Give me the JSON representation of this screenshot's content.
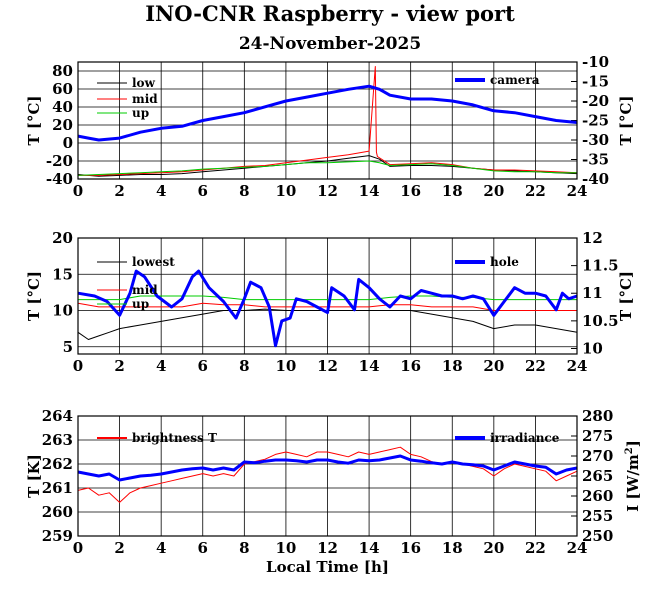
{
  "title": "INO-CNR Raspberry - view port",
  "subtitle": "24-November-2025",
  "chart_data": [
    {
      "type": "line",
      "xlabel": "",
      "ylabel": "T [°C]",
      "ylabel_right": "T [°C]",
      "xlim": [
        0,
        24
      ],
      "ylim": [
        -40,
        90
      ],
      "ylim_right": [
        -40,
        -10
      ],
      "xticks": [
        "0",
        "2",
        "4",
        "6",
        "8",
        "10",
        "12",
        "14",
        "16",
        "18",
        "20",
        "22",
        "24"
      ],
      "yticks": [
        "-40",
        "-20",
        "0",
        "20",
        "40",
        "60",
        "80"
      ],
      "yticks_right": [
        "-40",
        "-35",
        "-30",
        "-25",
        "-20",
        "-15",
        "-10"
      ],
      "grid": true,
      "series": [
        {
          "name": "low",
          "color": "#000000",
          "axis": "left",
          "x": [
            0,
            1,
            2,
            3,
            4,
            5,
            6,
            7,
            8,
            9,
            10,
            11,
            12,
            13,
            14,
            14.5,
            15,
            16,
            17,
            18,
            19,
            20,
            21,
            22,
            23,
            24
          ],
          "y": [
            -35,
            -37,
            -36,
            -35,
            -35,
            -34,
            -32,
            -30,
            -28,
            -26,
            -24,
            -22,
            -20,
            -17,
            -14,
            -18,
            -26,
            -25,
            -25,
            -26,
            -28,
            -30,
            -31,
            -32,
            -33,
            -34
          ]
        },
        {
          "name": "mid",
          "color": "#ff0000",
          "axis": "left",
          "x": [
            0,
            1,
            2,
            3,
            4,
            5,
            6,
            7,
            8,
            9,
            10,
            11,
            12,
            13,
            14,
            14.3,
            14.35,
            14.4,
            15,
            16,
            17,
            18,
            19,
            20,
            21,
            22,
            23,
            24
          ],
          "y": [
            -36,
            -36,
            -35,
            -34,
            -33,
            -32,
            -30,
            -28,
            -26,
            -25,
            -22,
            -19,
            -16,
            -13,
            -9,
            85,
            -10,
            -15,
            -24,
            -23,
            -22,
            -24,
            -28,
            -30,
            -30,
            -31,
            -32,
            -33
          ]
        },
        {
          "name": "up",
          "color": "#00cc00",
          "axis": "left",
          "x": [
            0,
            1,
            2,
            3,
            4,
            5,
            6,
            7,
            8,
            9,
            10,
            11,
            12,
            13,
            14,
            14.5,
            15,
            16,
            17,
            18,
            19,
            20,
            21,
            22,
            23,
            24
          ],
          "y": [
            -36,
            -35,
            -34,
            -33,
            -32,
            -31,
            -29,
            -28,
            -27,
            -26,
            -24,
            -22,
            -22,
            -21,
            -20,
            -22,
            -25,
            -24,
            -23,
            -25,
            -28,
            -31,
            -32,
            -32,
            -33,
            -33
          ]
        },
        {
          "name": "camera",
          "color": "#0000ff",
          "axis": "right",
          "x": [
            0,
            0.5,
            1,
            2,
            3,
            4,
            5,
            6,
            7,
            8,
            9,
            10,
            11,
            12,
            13,
            14,
            14.5,
            15,
            16,
            17,
            18,
            19,
            20,
            21,
            22,
            23,
            24
          ],
          "y": [
            -29,
            -29.5,
            -30,
            -29.5,
            -28,
            -27,
            -26.5,
            -25,
            -24,
            -23,
            -21.5,
            -20,
            -19,
            -18,
            -17,
            -16.2,
            -17,
            -18.5,
            -19.5,
            -19.5,
            -20,
            -21,
            -22.5,
            -23,
            -24,
            -25,
            -25.5
          ]
        }
      ]
    },
    {
      "type": "line",
      "xlabel": "",
      "ylabel": "T [°C]",
      "ylabel_right": "T [°C]",
      "xlim": [
        0,
        24
      ],
      "ylim": [
        4,
        20
      ],
      "ylim_right": [
        9.9,
        12
      ],
      "xticks": [
        "0",
        "2",
        "4",
        "6",
        "8",
        "10",
        "12",
        "14",
        "16",
        "18",
        "20",
        "22",
        "24"
      ],
      "yticks": [
        "5",
        "10",
        "15",
        "20"
      ],
      "yticks_right": [
        "10",
        "10.5",
        "11",
        "11.5",
        "12"
      ],
      "grid": true,
      "series": [
        {
          "name": "lowest",
          "color": "#000000",
          "axis": "left",
          "x": [
            0,
            0.5,
            1,
            1.5,
            2,
            3,
            4,
            5,
            6,
            7,
            8,
            9,
            10,
            11,
            12,
            13,
            14,
            15,
            16,
            17,
            18,
            19,
            20,
            21,
            22,
            23,
            24
          ],
          "y": [
            7,
            6,
            6.5,
            7,
            7.5,
            8,
            8.5,
            9,
            9.5,
            10,
            10,
            10.2,
            10,
            10,
            10,
            10,
            10,
            10,
            10,
            9.5,
            9,
            8.5,
            7.5,
            8,
            8,
            7.5,
            7
          ]
        },
        {
          "name": "mid",
          "color": "#ff0000",
          "axis": "left",
          "x": [
            0,
            1,
            2,
            3,
            4,
            5,
            6,
            7,
            8,
            9,
            10,
            11,
            12,
            13,
            14,
            15,
            16,
            17,
            18,
            19,
            20,
            21,
            22,
            23,
            24
          ],
          "y": [
            11,
            10.5,
            10.5,
            10.5,
            10.5,
            10.5,
            11,
            10.8,
            10.8,
            10.5,
            10.5,
            10.5,
            10.5,
            10.5,
            10.5,
            10.8,
            10.8,
            10.5,
            10.5,
            10.5,
            10,
            10,
            10,
            10,
            10
          ]
        },
        {
          "name": "up",
          "color": "#00cc00",
          "axis": "left",
          "x": [
            0,
            1,
            2,
            3,
            4,
            5,
            6,
            7,
            8,
            9,
            10,
            11,
            12,
            13,
            14,
            15,
            16,
            17,
            18,
            19,
            20,
            21,
            22,
            23,
            24
          ],
          "y": [
            11.5,
            11.5,
            11.5,
            12,
            12,
            12,
            12,
            11.8,
            11.5,
            11.5,
            11.5,
            11.5,
            11.5,
            11.5,
            11.5,
            11.8,
            12,
            12,
            11.8,
            11.8,
            11.5,
            11.5,
            11.5,
            11.5,
            11.5
          ]
        },
        {
          "name": "hole",
          "color": "#0000ff",
          "axis": "right",
          "x": [
            0,
            0.8,
            1.4,
            2,
            2.5,
            2.8,
            3.2,
            3.8,
            4.5,
            5,
            5.5,
            5.8,
            6.3,
            7,
            7.6,
            8,
            8.3,
            8.8,
            9.2,
            9.5,
            9.8,
            10.2,
            10.5,
            11,
            11.5,
            12,
            12.2,
            12.8,
            13.3,
            13.5,
            14,
            14.5,
            15,
            15.5,
            16,
            16.5,
            17,
            17.5,
            18,
            18.5,
            19,
            19.5,
            20,
            20.5,
            21,
            21.5,
            22,
            22.5,
            23,
            23.3,
            23.6,
            24
          ],
          "y": [
            11,
            10.95,
            10.85,
            10.6,
            11,
            11.4,
            11.3,
            10.95,
            10.75,
            10.9,
            11.3,
            11.4,
            11.1,
            10.85,
            10.55,
            10.9,
            11.2,
            11.1,
            10.75,
            10.05,
            10.5,
            10.55,
            10.9,
            10.85,
            10.75,
            10.65,
            11.1,
            10.95,
            10.7,
            11.25,
            11.1,
            10.9,
            10.75,
            10.95,
            10.9,
            11.05,
            11,
            10.95,
            10.95,
            10.9,
            10.95,
            10.9,
            10.6,
            10.85,
            11.1,
            11,
            11,
            10.95,
            10.7,
            11,
            10.9,
            10.95
          ]
        }
      ]
    },
    {
      "type": "line",
      "xlabel": "Local Time [h]",
      "ylabel": "T [K]",
      "ylabel_right": "I [W/m2]",
      "xlim": [
        0,
        24
      ],
      "ylim": [
        259,
        264
      ],
      "ylim_right": [
        250,
        280
      ],
      "xticks": [
        "0",
        "2",
        "4",
        "6",
        "8",
        "10",
        "12",
        "14",
        "16",
        "18",
        "20",
        "22",
        "24"
      ],
      "yticks": [
        "259",
        "260",
        "261",
        "262",
        "263",
        "264"
      ],
      "yticks_right": [
        "250",
        "255",
        "260",
        "265",
        "270",
        "275",
        "280"
      ],
      "grid": true,
      "series": [
        {
          "name": "brightness T",
          "color": "#ff0000",
          "axis": "left",
          "x": [
            0,
            0.5,
            1,
            1.5,
            2,
            2.5,
            3,
            3.5,
            4,
            4.5,
            5,
            5.5,
            6,
            6.5,
            7,
            7.5,
            8,
            8.5,
            9,
            9.5,
            10,
            10.5,
            11,
            11.5,
            12,
            12.5,
            13,
            13.5,
            14,
            14.5,
            15,
            15.5,
            16,
            16.5,
            17,
            17.5,
            18,
            18.5,
            19,
            19.5,
            20,
            20.5,
            21,
            21.5,
            22,
            22.5,
            23,
            23.5,
            24
          ],
          "y": [
            260.9,
            261,
            260.7,
            260.8,
            260.4,
            260.8,
            261,
            261.1,
            261.2,
            261.3,
            261.4,
            261.5,
            261.6,
            261.5,
            261.6,
            261.5,
            262,
            262.1,
            262.2,
            262.4,
            262.5,
            262.4,
            262.3,
            262.5,
            262.5,
            262.4,
            262.3,
            262.5,
            262.4,
            262.5,
            262.6,
            262.7,
            262.4,
            262.3,
            262.1,
            262,
            262.1,
            262,
            261.9,
            261.8,
            261.5,
            261.8,
            262,
            261.9,
            261.8,
            261.7,
            261.3,
            261.5,
            261.7
          ]
        },
        {
          "name": "irradiance",
          "color": "#0000ff",
          "axis": "right",
          "x": [
            0,
            0.5,
            1,
            1.5,
            2,
            2.5,
            3,
            3.5,
            4,
            4.5,
            5,
            5.5,
            6,
            6.5,
            7,
            7.5,
            8,
            8.5,
            9,
            9.5,
            10,
            10.5,
            11,
            11.5,
            12,
            12.5,
            13,
            13.5,
            14,
            14.5,
            15,
            15.5,
            16,
            16.5,
            17,
            17.5,
            18,
            18.5,
            19,
            19.5,
            20,
            20.5,
            21,
            21.5,
            22,
            22.5,
            23,
            23.5,
            24
          ],
          "y": [
            266,
            265.5,
            265,
            265.5,
            264,
            264.5,
            265,
            265.2,
            265.5,
            266,
            266.5,
            266.8,
            267,
            266.5,
            267,
            266.5,
            268.5,
            268.3,
            268.7,
            269,
            269,
            268.8,
            268.5,
            269,
            269,
            268.5,
            268.2,
            269,
            268.8,
            269,
            269.5,
            270,
            269,
            268.7,
            268.3,
            268,
            268.5,
            268,
            267.8,
            267.5,
            266.5,
            267.5,
            268.5,
            268,
            267.5,
            267.2,
            265.5,
            266.5,
            267
          ]
        }
      ]
    }
  ]
}
